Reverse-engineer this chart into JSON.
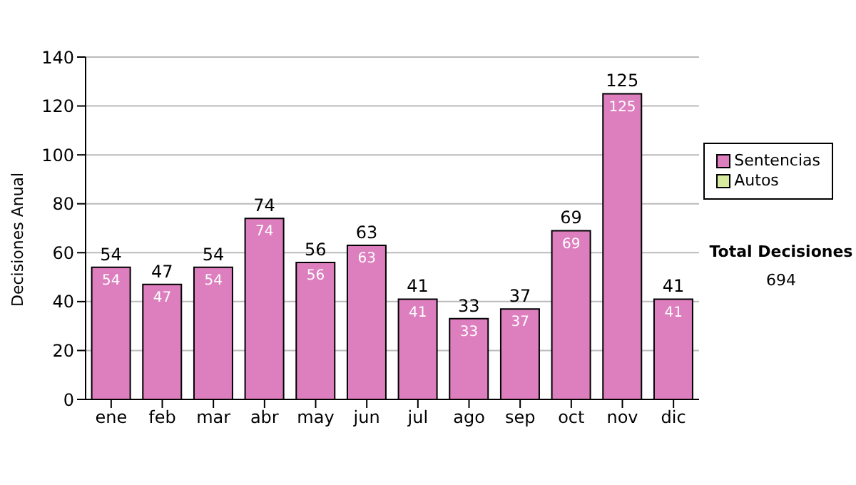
{
  "chart_data": {
    "type": "bar",
    "ylabel": "Decisiones Anual",
    "categories": [
      "ene",
      "feb",
      "mar",
      "abr",
      "may",
      "jun",
      "jul",
      "ago",
      "sep",
      "oct",
      "nov",
      "dic"
    ],
    "series": [
      {
        "name": "Sentencias",
        "color": "#dd7fbe",
        "values": [
          54,
          47,
          54,
          74,
          56,
          63,
          41,
          33,
          37,
          69,
          125,
          41
        ]
      },
      {
        "name": "Autos",
        "color": "#d6eaa0",
        "values": [
          null,
          null,
          null,
          null,
          null,
          null,
          null,
          null,
          null,
          null,
          null,
          null
        ]
      }
    ],
    "ylim": [
      0,
      140
    ],
    "yticks": [
      0,
      20,
      40,
      60,
      80,
      100,
      120,
      140
    ],
    "grid": "y",
    "legend": "right",
    "data_labels": true,
    "annotations": [
      "Total Decisiones",
      "694",
      {
        "text": "54",
        "x": "ene",
        "y": 54
      },
      {
        "text": "47",
        "x": "feb",
        "y": 47
      },
      {
        "text": "54",
        "x": "mar",
        "y": 54
      },
      {
        "text": "74",
        "x": "abr",
        "y": 74
      },
      {
        "text": "56",
        "x": "may",
        "y": 56
      },
      {
        "text": "63",
        "x": "jun",
        "y": 63
      },
      {
        "text": "41",
        "x": "jul",
        "y": 41
      },
      {
        "text": "33",
        "x": "ago",
        "y": 33
      },
      {
        "text": "37",
        "x": "sep",
        "y": 37
      },
      {
        "text": "69",
        "x": "oct",
        "y": 69
      },
      {
        "text": "125",
        "x": "nov",
        "y": 125
      },
      {
        "text": "41",
        "x": "dic",
        "y": 41
      }
    ]
  }
}
